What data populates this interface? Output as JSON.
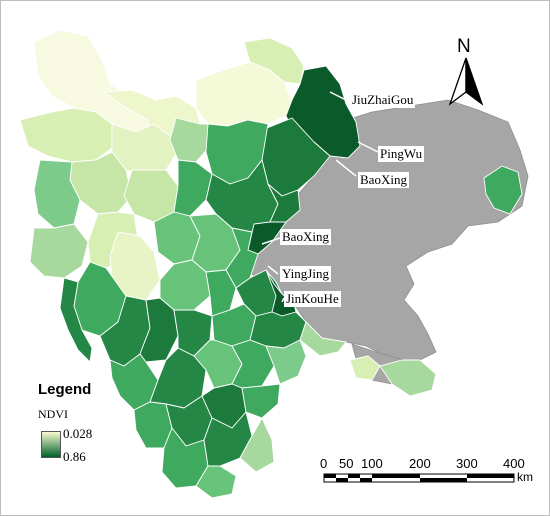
{
  "legend": {
    "title": "Legend",
    "variable": "NDVI",
    "min_value": "0.028",
    "max_value": "0.86",
    "low_color": "#f7fcd0",
    "high_color": "#00602b"
  },
  "north_arrow": {
    "letter": "N"
  },
  "scale_bar": {
    "ticks": [
      "0",
      "50",
      "100",
      "200",
      "300",
      "400"
    ],
    "unit": "km"
  },
  "place_labels": [
    {
      "name": "JiuZhaiGou"
    },
    {
      "name": "PingWu"
    },
    {
      "name": "BaoXing"
    },
    {
      "name": "BaoXing"
    },
    {
      "name": "YingJing"
    },
    {
      "name": "JinKouHe"
    }
  ],
  "colors": {
    "no_data_gray": "#a6a6a6",
    "very_light": "#f7fae0",
    "light": "#d8efb4",
    "light_green": "#a7d99e",
    "mid_green": "#67c27a",
    "green": "#3fa95f",
    "dark_green": "#248746",
    "darkest_green": "#0b5a2a"
  }
}
